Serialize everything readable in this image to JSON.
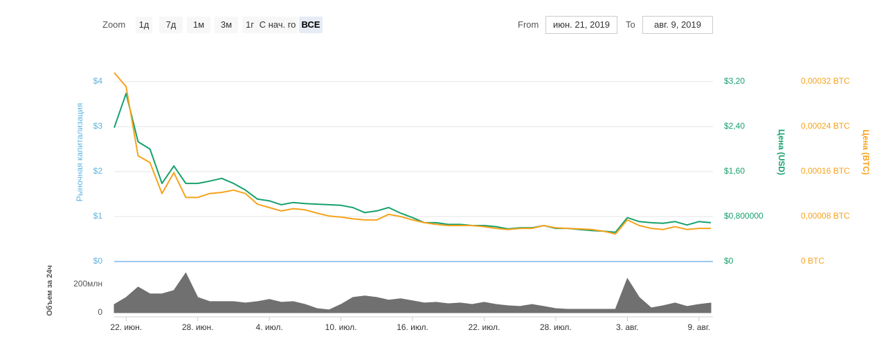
{
  "controls": {
    "zoom_label": "Zoom",
    "zoom_buttons": [
      "1д",
      "7д",
      "1м",
      "3м",
      "1г",
      "С нач. го",
      "ВСЕ"
    ],
    "active_button": 6,
    "from_label": "From",
    "from_value": "июн. 21, 2019",
    "to_label": "To",
    "to_value": "авг. 9, 2019"
  },
  "chart_data": [
    {
      "type": "line",
      "ylabel": "Рыночная капитализация",
      "x": [
        "2019-06-21",
        "2019-06-22",
        "2019-06-23",
        "2019-06-24",
        "2019-06-25",
        "2019-06-26",
        "2019-06-27",
        "2019-06-28",
        "2019-06-29",
        "2019-06-30",
        "2019-07-01",
        "2019-07-02",
        "2019-07-03",
        "2019-07-04",
        "2019-07-05",
        "2019-07-06",
        "2019-07-07",
        "2019-07-08",
        "2019-07-09",
        "2019-07-10",
        "2019-07-11",
        "2019-07-12",
        "2019-07-13",
        "2019-07-14",
        "2019-07-15",
        "2019-07-16",
        "2019-07-17",
        "2019-07-18",
        "2019-07-19",
        "2019-07-20",
        "2019-07-21",
        "2019-07-22",
        "2019-07-23",
        "2019-07-24",
        "2019-07-25",
        "2019-07-26",
        "2019-07-27",
        "2019-07-28",
        "2019-07-29",
        "2019-07-30",
        "2019-07-31",
        "2019-08-01",
        "2019-08-02",
        "2019-08-03",
        "2019-08-04",
        "2019-08-05",
        "2019-08-06",
        "2019-08-07",
        "2019-08-08",
        "2019-08-09",
        "2019-08-10"
      ],
      "xlim": [
        "2019-06-21",
        "2019-08-10"
      ],
      "ylim": [
        0,
        4
      ],
      "yticks": [
        {
          "value": 0,
          "label": "$0"
        },
        {
          "value": 1,
          "label": "$1"
        },
        {
          "value": 2,
          "label": "$2"
        },
        {
          "value": 3,
          "label": "$3"
        },
        {
          "value": 4,
          "label": "$4"
        }
      ],
      "y2lim": [
        0,
        3.2
      ],
      "y2ticks": [
        {
          "value": 0,
          "label": "$0"
        },
        {
          "value": 0.8,
          "label": "$0,800000"
        },
        {
          "value": 1.6,
          "label": "$1,60"
        },
        {
          "value": 2.4,
          "label": "$2,40"
        },
        {
          "value": 3.2,
          "label": "$3,20"
        }
      ],
      "y3lim": [
        0,
        0.00032
      ],
      "y3ticks": [
        {
          "value": 0,
          "label": "0 BTC"
        },
        {
          "value": 8e-05,
          "label": "0,00008 BTC"
        },
        {
          "value": 0.00016,
          "label": "0,00016 BTC"
        },
        {
          "value": 0.00024,
          "label": "0,00024 BTC"
        },
        {
          "value": 0.00032,
          "label": "0,00032 BTC"
        }
      ],
      "grid": true,
      "series": [
        {
          "name": "Цена (USD)",
          "color": "#16a06c",
          "axis": "y2",
          "values": [
            2.38,
            2.99,
            2.13,
            2.0,
            1.39,
            1.7,
            1.39,
            1.39,
            1.43,
            1.48,
            1.39,
            1.27,
            1.11,
            1.08,
            1.01,
            1.05,
            1.03,
            1.02,
            1.01,
            1.0,
            0.96,
            0.87,
            0.9,
            0.96,
            0.86,
            0.78,
            0.69,
            0.69,
            0.66,
            0.66,
            0.64,
            0.64,
            0.62,
            0.58,
            0.6,
            0.6,
            0.64,
            0.59,
            0.59,
            0.57,
            0.55,
            0.54,
            0.52,
            0.78,
            0.71,
            0.69,
            0.68,
            0.71,
            0.65,
            0.71,
            0.69
          ]
        },
        {
          "name": "Цена (BTC)",
          "color": "#f7a21b",
          "axis": "y3",
          "values": [
            0.000336,
            0.000311,
            0.000188,
            0.000176,
            0.000121,
            0.000158,
            0.000114,
            0.000114,
            0.000121,
            0.000123,
            0.000127,
            0.000121,
            0.000102,
            9.6e-05,
            9e-05,
            9.4e-05,
            9.2e-05,
            8.6e-05,
            8.1e-05,
            7.9e-05,
            7.6e-05,
            7.4e-05,
            7.4e-05,
            8.4e-05,
            8e-05,
            7.4e-05,
            6.9e-05,
            6.6e-05,
            6.4e-05,
            6.4e-05,
            6.4e-05,
            6.2e-05,
            5.9e-05,
            5.7e-05,
            5.9e-05,
            5.9e-05,
            6.4e-05,
            6e-05,
            5.9e-05,
            5.8e-05,
            5.7e-05,
            5.4e-05,
            4.9e-05,
            7.4e-05,
            6.4e-05,
            5.9e-05,
            5.7e-05,
            6.2e-05,
            5.7e-05,
            5.9e-05,
            5.9e-05
          ]
        }
      ]
    },
    {
      "type": "area",
      "ylabel": "Объем за 24ч",
      "x": [
        "2019-06-21",
        "2019-06-22",
        "2019-06-23",
        "2019-06-24",
        "2019-06-25",
        "2019-06-26",
        "2019-06-27",
        "2019-06-28",
        "2019-06-29",
        "2019-06-30",
        "2019-07-01",
        "2019-07-02",
        "2019-07-03",
        "2019-07-04",
        "2019-07-05",
        "2019-07-06",
        "2019-07-07",
        "2019-07-08",
        "2019-07-09",
        "2019-07-10",
        "2019-07-11",
        "2019-07-12",
        "2019-07-13",
        "2019-07-14",
        "2019-07-15",
        "2019-07-16",
        "2019-07-17",
        "2019-07-18",
        "2019-07-19",
        "2019-07-20",
        "2019-07-21",
        "2019-07-22",
        "2019-07-23",
        "2019-07-24",
        "2019-07-25",
        "2019-07-26",
        "2019-07-27",
        "2019-07-28",
        "2019-07-29",
        "2019-07-30",
        "2019-07-31",
        "2019-08-01",
        "2019-08-02",
        "2019-08-03",
        "2019-08-04",
        "2019-08-05",
        "2019-08-06",
        "2019-08-07",
        "2019-08-08",
        "2019-08-09",
        "2019-08-10"
      ],
      "xlim": [
        "2019-06-21",
        "2019-08-10"
      ],
      "xticks": [
        {
          "value": "2019-06-22",
          "label": "22. июн."
        },
        {
          "value": "2019-06-28",
          "label": "28. июн."
        },
        {
          "value": "2019-07-04",
          "label": "4. июл."
        },
        {
          "value": "2019-07-10",
          "label": "10. июл."
        },
        {
          "value": "2019-07-16",
          "label": "16. июл."
        },
        {
          "value": "2019-07-22",
          "label": "22. июл."
        },
        {
          "value": "2019-07-28",
          "label": "28. июл."
        },
        {
          "value": "2019-08-03",
          "label": "3. авг."
        },
        {
          "value": "2019-08-09",
          "label": "9. авг."
        }
      ],
      "ylim": [
        0,
        300000000
      ],
      "yticks": [
        0,
        {
          "value": 200000000,
          "label": "200млн"
        }
      ],
      "color": "#707070",
      "values": [
        58000000,
        107000000,
        180000000,
        132000000,
        132000000,
        156000000,
        278000000,
        107000000,
        78000000,
        78000000,
        78000000,
        68000000,
        78000000,
        93000000,
        73000000,
        78000000,
        58000000,
        29000000,
        20000000,
        58000000,
        107000000,
        117000000,
        107000000,
        88000000,
        98000000,
        83000000,
        68000000,
        73000000,
        63000000,
        68000000,
        58000000,
        73000000,
        58000000,
        49000000,
        44000000,
        58000000,
        44000000,
        29000000,
        24000000,
        24000000,
        24000000,
        24000000,
        24000000,
        239000000,
        107000000,
        34000000,
        49000000,
        68000000,
        44000000,
        58000000,
        68000000
      ]
    }
  ]
}
